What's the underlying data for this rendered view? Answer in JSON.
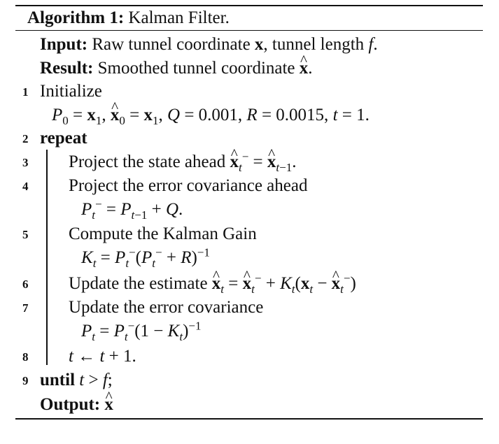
{
  "header": {
    "label": "Algorithm 1:",
    "title": "Kalman Filter."
  },
  "input": {
    "label": "Input:",
    "text_a": "Raw tunnel coordinate",
    "var_x": "x",
    "text_b": ", tunnel length",
    "var_f": "f",
    "text_c": "."
  },
  "result": {
    "label": "Result:",
    "text": "Smoothed tunnel coordinate",
    "var": "x",
    "end": "."
  },
  "lines": {
    "n1": "1",
    "init": "Initialize",
    "init_eq_a": "P",
    "init_eq_b": "0",
    "init_eq_c": " = ",
    "init_eq_d": "x",
    "init_eq_e": "1",
    "init_eq_f": ", ",
    "init_eq_g": "x",
    "init_eq_h": "0",
    "init_eq_i": " = ",
    "init_eq_j": "x",
    "init_eq_k": "1",
    "init_eq_l": ", ",
    "init_eq_m": "Q",
    "init_eq_n": " = 0.001, ",
    "init_eq_o": "R",
    "init_eq_p": " = 0.0015, ",
    "init_eq_q": "t",
    "init_eq_r": " = 1.",
    "n2": "2",
    "repeat": "repeat",
    "n3": "3",
    "l3": "Project the state ahead",
    "n4": "4",
    "l4": "Project the error covariance ahead",
    "n5": "5",
    "l5": "Compute the Kalman Gain",
    "n6": "6",
    "l6": "Update the estimate",
    "n7": "7",
    "l7": "Update the error covariance",
    "n8": "8",
    "n9": "9",
    "until": "until",
    "output_label": "Output:"
  }
}
